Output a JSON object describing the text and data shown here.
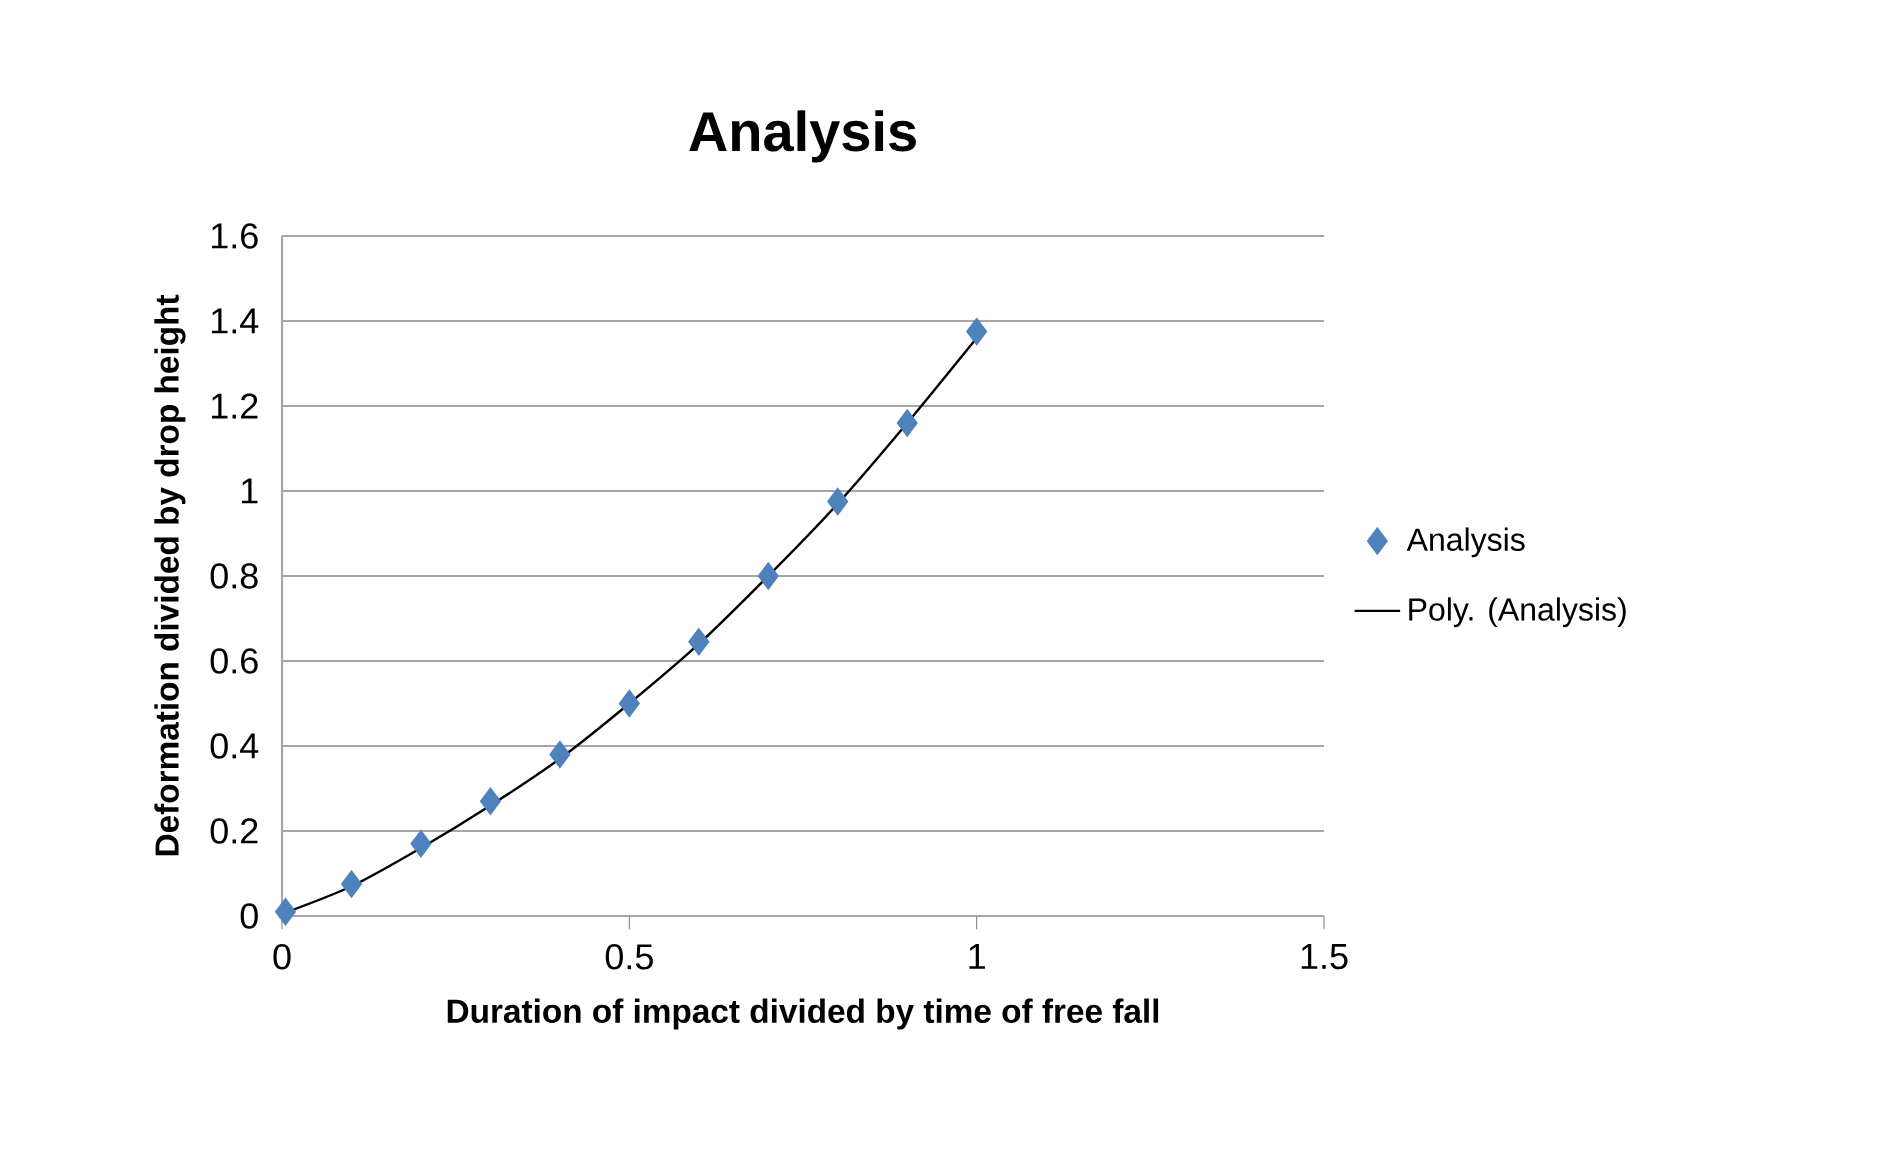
{
  "chart_data": {
    "type": "scatter",
    "title": "Analysis",
    "xlabel": "Duration of impact divided by time of free fall",
    "ylabel": "Deformation divided by drop height",
    "xlim": [
      0,
      1.5
    ],
    "xticks": [
      0,
      0.5,
      1,
      1.5
    ],
    "ylim": [
      0,
      1.6
    ],
    "yticks": [
      0,
      0.2,
      0.4,
      0.6,
      0.8,
      1,
      1.2,
      1.4,
      1.6
    ],
    "grid": "y",
    "legend": "right",
    "series": [
      {
        "name": "Analysis",
        "color": "#4f81bd",
        "marker": "diamond",
        "x": [
          0.005,
          0.1,
          0.2,
          0.3,
          0.4,
          0.5,
          0.6,
          0.7,
          0.8,
          0.9,
          1.0
        ],
        "values": [
          0.01,
          0.075,
          0.17,
          0.27,
          0.38,
          0.5,
          0.645,
          0.8,
          0.975,
          1.16,
          1.375
        ]
      },
      {
        "name": "Poly. (Analysis)",
        "type": "line",
        "color": "#000000",
        "marker": "none",
        "line_style": "solid",
        "x": [
          0,
          0.1,
          0.2,
          0.3,
          0.4,
          0.5,
          0.6,
          0.7,
          0.8,
          0.9,
          1.0
        ],
        "values": [
          0.005,
          0.07,
          0.16,
          0.26,
          0.37,
          0.5,
          0.64,
          0.8,
          0.97,
          1.16,
          1.36
        ]
      }
    ]
  }
}
